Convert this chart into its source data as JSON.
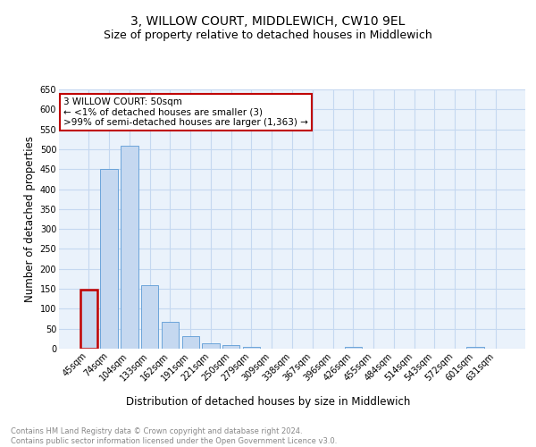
{
  "title": "3, WILLOW COURT, MIDDLEWICH, CW10 9EL",
  "subtitle": "Size of property relative to detached houses in Middlewich",
  "xlabel": "Distribution of detached houses by size in Middlewich",
  "ylabel": "Number of detached properties",
  "footnote1": "Contains HM Land Registry data © Crown copyright and database right 2024.",
  "footnote2": "Contains public sector information licensed under the Open Government Licence v3.0.",
  "annotation_line1": "3 WILLOW COURT: 50sqm",
  "annotation_line2": "← <1% of detached houses are smaller (3)",
  "annotation_line3": ">99% of semi-detached houses are larger (1,363) →",
  "categories": [
    "45sqm",
    "74sqm",
    "104sqm",
    "133sqm",
    "162sqm",
    "191sqm",
    "221sqm",
    "250sqm",
    "279sqm",
    "309sqm",
    "338sqm",
    "367sqm",
    "396sqm",
    "426sqm",
    "455sqm",
    "484sqm",
    "514sqm",
    "543sqm",
    "572sqm",
    "601sqm",
    "631sqm"
  ],
  "values": [
    148,
    450,
    508,
    160,
    67,
    31,
    13,
    8,
    5,
    0,
    0,
    0,
    0,
    5,
    0,
    0,
    0,
    0,
    0,
    5,
    0
  ],
  "bar_color": "#c5d8f0",
  "bar_edge_color": "#5b9bd5",
  "highlight_bar_index": 0,
  "highlight_edge_color": "#c00000",
  "annotation_box_edge_color": "#c00000",
  "ylim": [
    0,
    650
  ],
  "yticks": [
    0,
    50,
    100,
    150,
    200,
    250,
    300,
    350,
    400,
    450,
    500,
    550,
    600,
    650
  ],
  "grid_color": "#c5d8f0",
  "bg_color": "#eaf2fb",
  "fig_bg_color": "#ffffff",
  "title_fontsize": 10,
  "subtitle_fontsize": 9,
  "axis_label_fontsize": 8.5,
  "tick_fontsize": 7,
  "footnote_fontsize": 6,
  "annotation_fontsize": 7.5
}
